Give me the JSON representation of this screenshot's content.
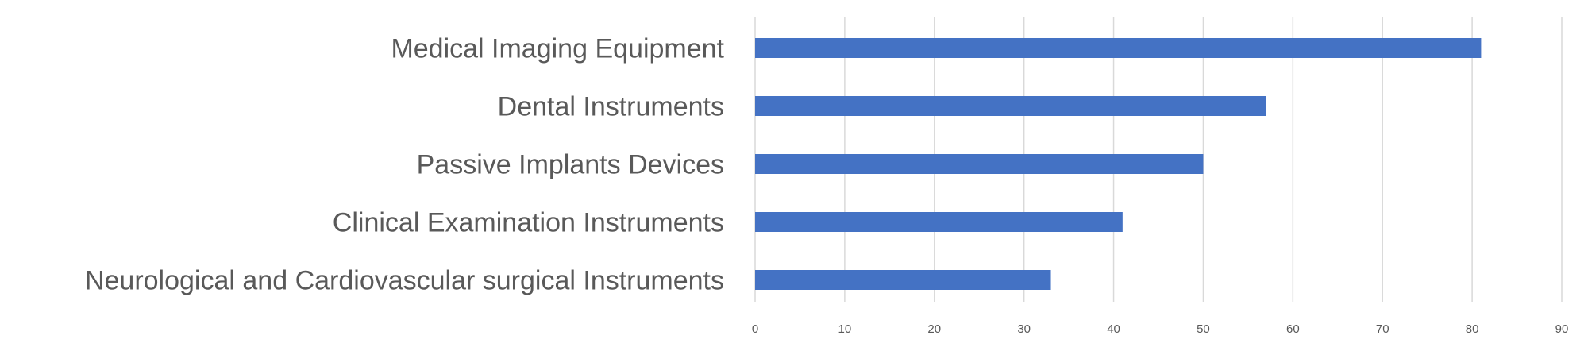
{
  "chart_data": {
    "type": "bar",
    "orientation": "horizontal",
    "categories": [
      "Medical Imaging Equipment",
      "Dental Instruments",
      "Passive Implants Devices",
      "Clinical Examination Instruments",
      "Neurological and Cardiovascular surgical Instruments"
    ],
    "values": [
      81,
      57,
      50,
      41,
      33
    ],
    "title": "",
    "xlabel": "",
    "ylabel": "",
    "xlim": [
      0,
      90
    ],
    "xticks": [
      "0",
      "10",
      "20",
      "30",
      "40",
      "50",
      "60",
      "70",
      "80",
      "90"
    ],
    "grid": true,
    "legend": "none",
    "colors": {
      "bar": "#4472C4",
      "grid": "#D9D9D9",
      "text": "#595959"
    }
  }
}
